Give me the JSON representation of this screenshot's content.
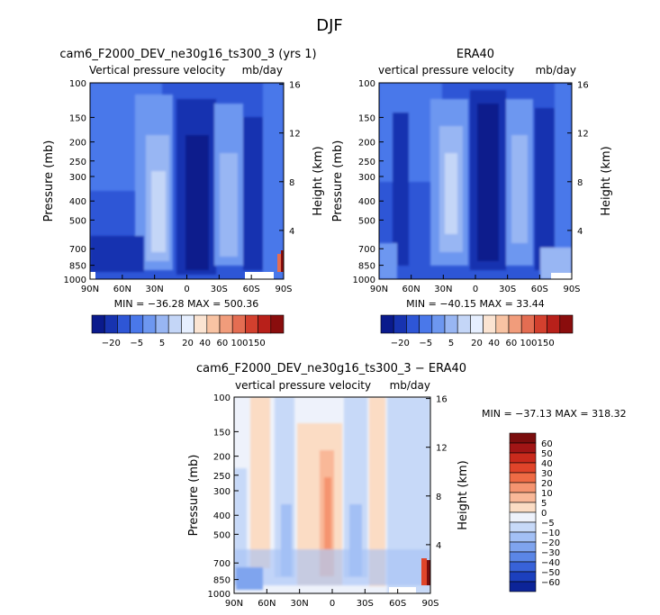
{
  "figure": {
    "title": "DJF",
    "colors": {
      "bg": "#ffffff",
      "axis": "#000000"
    }
  },
  "chart_data": [
    {
      "id": "p1",
      "type": "heatmap",
      "title": "cam6_F2000_DEV_ne30g16_ts300_3 (yrs 1)",
      "subtitle_left": "Vertical pressure velocity",
      "subtitle_right": "mb/day",
      "ylabel": "Pressure (mb)",
      "ylabel_right": "Height (km)",
      "xticks": [
        "90N",
        "60N",
        "30N",
        "0",
        "30S",
        "60S",
        "90S"
      ],
      "yticks": [
        "100",
        "150",
        "200",
        "250",
        "300",
        "400",
        "500",
        "700",
        "850",
        "1000"
      ],
      "yticks_right": [
        "16",
        "12",
        "8",
        "4"
      ],
      "stats": "MIN = −36.28   MAX = 500.36",
      "colorbar": {
        "orientation": "horizontal",
        "labels": [
          "−20",
          "−5",
          "5",
          "20",
          "40",
          "60",
          "100",
          "150"
        ],
        "colors": [
          "#0a1a8c",
          "#1733b0",
          "#2e56d6",
          "#4a78ea",
          "#6d97f0",
          "#98b6f3",
          "#c4d6f7",
          "#e6efff",
          "#fbe4d2",
          "#f8c3a3",
          "#f19c7b",
          "#e46d52",
          "#d3402e",
          "#b8201a",
          "#8a0d0d"
        ]
      }
    },
    {
      "id": "p2",
      "type": "heatmap",
      "title": "ERA40",
      "subtitle_left": "vertical pressure velocity",
      "subtitle_right": "mb/day",
      "ylabel": "Pressure (mb)",
      "ylabel_right": "Height (km)",
      "xticks": [
        "90N",
        "60N",
        "30N",
        "0",
        "30S",
        "60S",
        "90S"
      ],
      "yticks": [
        "100",
        "150",
        "200",
        "250",
        "300",
        "400",
        "500",
        "700",
        "850",
        "1000"
      ],
      "yticks_right": [
        "16",
        "12",
        "8",
        "4"
      ],
      "stats": "MIN = −40.15   MAX =  33.44",
      "colorbar": {
        "orientation": "horizontal",
        "labels": [
          "−20",
          "−5",
          "5",
          "20",
          "40",
          "60",
          "100",
          "150"
        ],
        "colors": [
          "#0a1a8c",
          "#1733b0",
          "#2e56d6",
          "#4a78ea",
          "#6d97f0",
          "#98b6f3",
          "#c4d6f7",
          "#e6efff",
          "#fbe4d2",
          "#f8c3a3",
          "#f19c7b",
          "#e46d52",
          "#d3402e",
          "#b8201a",
          "#8a0d0d"
        ]
      }
    },
    {
      "id": "p3",
      "type": "heatmap",
      "title": "cam6_F2000_DEV_ne30g16_ts300_3 − ERA40",
      "subtitle_left": "vertical pressure velocity",
      "subtitle_right": "mb/day",
      "ylabel": "Pressure (mb)",
      "ylabel_right": "Height (km)",
      "xticks": [
        "90N",
        "60N",
        "30N",
        "0",
        "30S",
        "60S",
        "90S"
      ],
      "yticks": [
        "100",
        "150",
        "200",
        "250",
        "300",
        "400",
        "500",
        "700",
        "850",
        "1000"
      ],
      "yticks_right": [
        "16",
        "12",
        "8",
        "4"
      ],
      "stats": "MIN = −37.13   MAX = 318.32",
      "colorbar": {
        "orientation": "vertical",
        "labels": [
          "60",
          "50",
          "40",
          "30",
          "20",
          "10",
          "5",
          "0",
          "−5",
          "−10",
          "−20",
          "−30",
          "−40",
          "−50",
          "−60"
        ],
        "colors": [
          "#7a0d0d",
          "#a11515",
          "#c92a1c",
          "#e0442a",
          "#ef6b45",
          "#f59470",
          "#f9b898",
          "#fbdcc4",
          "#eef2fb",
          "#c7d9f8",
          "#a3c0f5",
          "#7fa4ee",
          "#5b86e6",
          "#3862d8",
          "#1c40be",
          "#0c2498"
        ]
      }
    }
  ]
}
